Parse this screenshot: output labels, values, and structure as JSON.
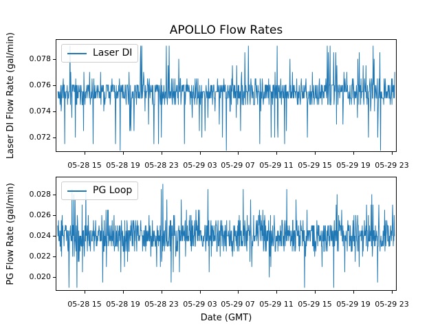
{
  "figure": {
    "title": "APOLLO Flow Rates",
    "xlabel": "Date (GMT)",
    "background": "#ffffff",
    "text_color": "#000000",
    "spine_color": "#000000",
    "legend_border_color": "#cccccc"
  },
  "chart_data": [
    {
      "type": "line",
      "title": "APOLLO Flow Rates",
      "ylabel": "Laser DI Flow Rate (gal/min)",
      "legend": "Laser DI",
      "legend_position": "upper left",
      "line_color": "#1f77b4",
      "grid": false,
      "ylim": [
        0.0709,
        0.0795
      ],
      "ytick_values": [
        0.072,
        0.074,
        0.076,
        0.078
      ],
      "ytick_labels": [
        "0.072",
        "0.074",
        "0.076",
        "0.078"
      ],
      "xlim_hours": [
        0,
        35.5
      ],
      "xtick_hours": [
        3,
        7,
        11,
        15,
        19,
        23,
        27,
        31,
        35
      ],
      "xtick_labels": [
        "05-28 15",
        "05-28 19",
        "05-28 23",
        "05-29 03",
        "05-29 07",
        "05-29 11",
        "05-29 15",
        "05-29 19",
        "05-29 23"
      ],
      "series_summary": {
        "name": "Laser DI",
        "description": "dense quantized noisy flow signal",
        "core_band": [
          0.075,
          0.076
        ],
        "min": 0.071,
        "max": 0.079,
        "quantization_step": 0.0005
      },
      "data_t_range": [
        0.2,
        35.3
      ],
      "noise_model": {
        "seed": 1337,
        "n": 950,
        "base": 0.0755,
        "step": 0.0005,
        "sigma": 1.8,
        "tail_prob": 0.1,
        "tail_max": 9,
        "clamp": [
          -9,
          7
        ]
      }
    },
    {
      "type": "line",
      "ylabel": "PG Flow Rate (gal/min)",
      "legend": "PG Loop",
      "legend_position": "upper left",
      "line_color": "#1f77b4",
      "grid": false,
      "ylim": [
        0.0187,
        0.0297
      ],
      "ytick_values": [
        0.02,
        0.022,
        0.024,
        0.026,
        0.028
      ],
      "ytick_labels": [
        "0.020",
        "0.022",
        "0.024",
        "0.026",
        "0.028"
      ],
      "xlim_hours": [
        0,
        35.5
      ],
      "xtick_hours": [
        3,
        7,
        11,
        15,
        19,
        23,
        27,
        31,
        35
      ],
      "xtick_labels": [
        "05-28 15",
        "05-28 19",
        "05-28 23",
        "05-29 03",
        "05-29 07",
        "05-29 11",
        "05-29 15",
        "05-29 19",
        "05-29 23"
      ],
      "series_summary": {
        "name": "PG Loop",
        "description": "dense quantized noisy flow signal",
        "core_band": [
          0.023,
          0.025
        ],
        "min": 0.019,
        "max": 0.029,
        "quantization_step": 0.0005
      },
      "data_t_range": [
        0.2,
        35.3
      ],
      "noise_model": {
        "seed": 7742,
        "n": 1100,
        "base": 0.024,
        "step": 0.0005,
        "sigma": 3.0,
        "tail_prob": 0.12,
        "tail_max": 10,
        "clamp": [
          -10,
          10
        ]
      }
    }
  ]
}
